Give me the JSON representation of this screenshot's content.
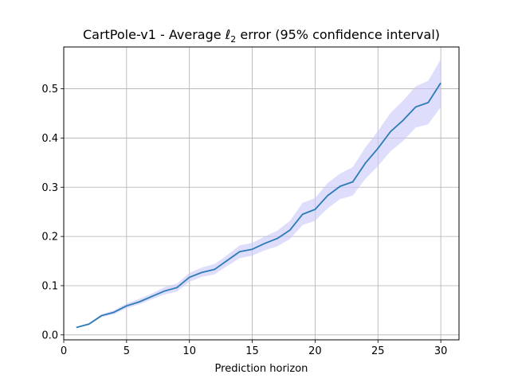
{
  "chart_data": {
    "type": "line",
    "title_main": "CartPole-v1 - Average ",
    "title_symbol": "ℓ",
    "title_subscript": "2",
    "title_rest": " error (95% confidence interval)",
    "xlabel": "Prediction horizon",
    "ylabel": "",
    "xlim": [
      0.0,
      31.45
    ],
    "ylim": [
      -0.01,
      0.585
    ],
    "x_ticks": [
      0,
      5,
      10,
      15,
      20,
      25,
      30
    ],
    "y_ticks": [
      0.0,
      0.1,
      0.2,
      0.3,
      0.4,
      0.5
    ],
    "x_tick_labels": [
      "0",
      "5",
      "10",
      "15",
      "20",
      "25",
      "30"
    ],
    "y_tick_labels": [
      "0.0",
      "0.1",
      "0.2",
      "0.3",
      "0.4",
      "0.5"
    ],
    "grid": true,
    "line_color": "#2c7bb6",
    "band_color": "#c8c8fa",
    "series": [
      {
        "x": [
          1,
          2,
          3,
          4,
          5,
          6,
          7,
          8,
          9,
          10,
          11,
          12,
          13,
          14,
          15,
          16,
          17,
          18,
          19,
          20,
          21,
          22,
          23,
          24,
          25,
          26,
          27,
          28,
          29,
          30
        ],
        "values": [
          0.015,
          0.022,
          0.039,
          0.046,
          0.059,
          0.067,
          0.078,
          0.089,
          0.096,
          0.117,
          0.127,
          0.133,
          0.151,
          0.169,
          0.174,
          0.186,
          0.196,
          0.213,
          0.245,
          0.255,
          0.283,
          0.302,
          0.311,
          0.349,
          0.379,
          0.413,
          0.436,
          0.463,
          0.472,
          0.512
        ],
        "lower": [
          0.014,
          0.02,
          0.036,
          0.042,
          0.054,
          0.062,
          0.072,
          0.082,
          0.088,
          0.108,
          0.118,
          0.123,
          0.14,
          0.156,
          0.161,
          0.172,
          0.18,
          0.195,
          0.223,
          0.232,
          0.257,
          0.276,
          0.283,
          0.317,
          0.343,
          0.373,
          0.394,
          0.421,
          0.428,
          0.463
        ],
        "upper": [
          0.016,
          0.024,
          0.042,
          0.05,
          0.064,
          0.073,
          0.084,
          0.097,
          0.104,
          0.126,
          0.137,
          0.144,
          0.162,
          0.182,
          0.187,
          0.2,
          0.212,
          0.232,
          0.268,
          0.278,
          0.309,
          0.328,
          0.341,
          0.381,
          0.414,
          0.451,
          0.476,
          0.505,
          0.516,
          0.56
        ]
      }
    ]
  }
}
